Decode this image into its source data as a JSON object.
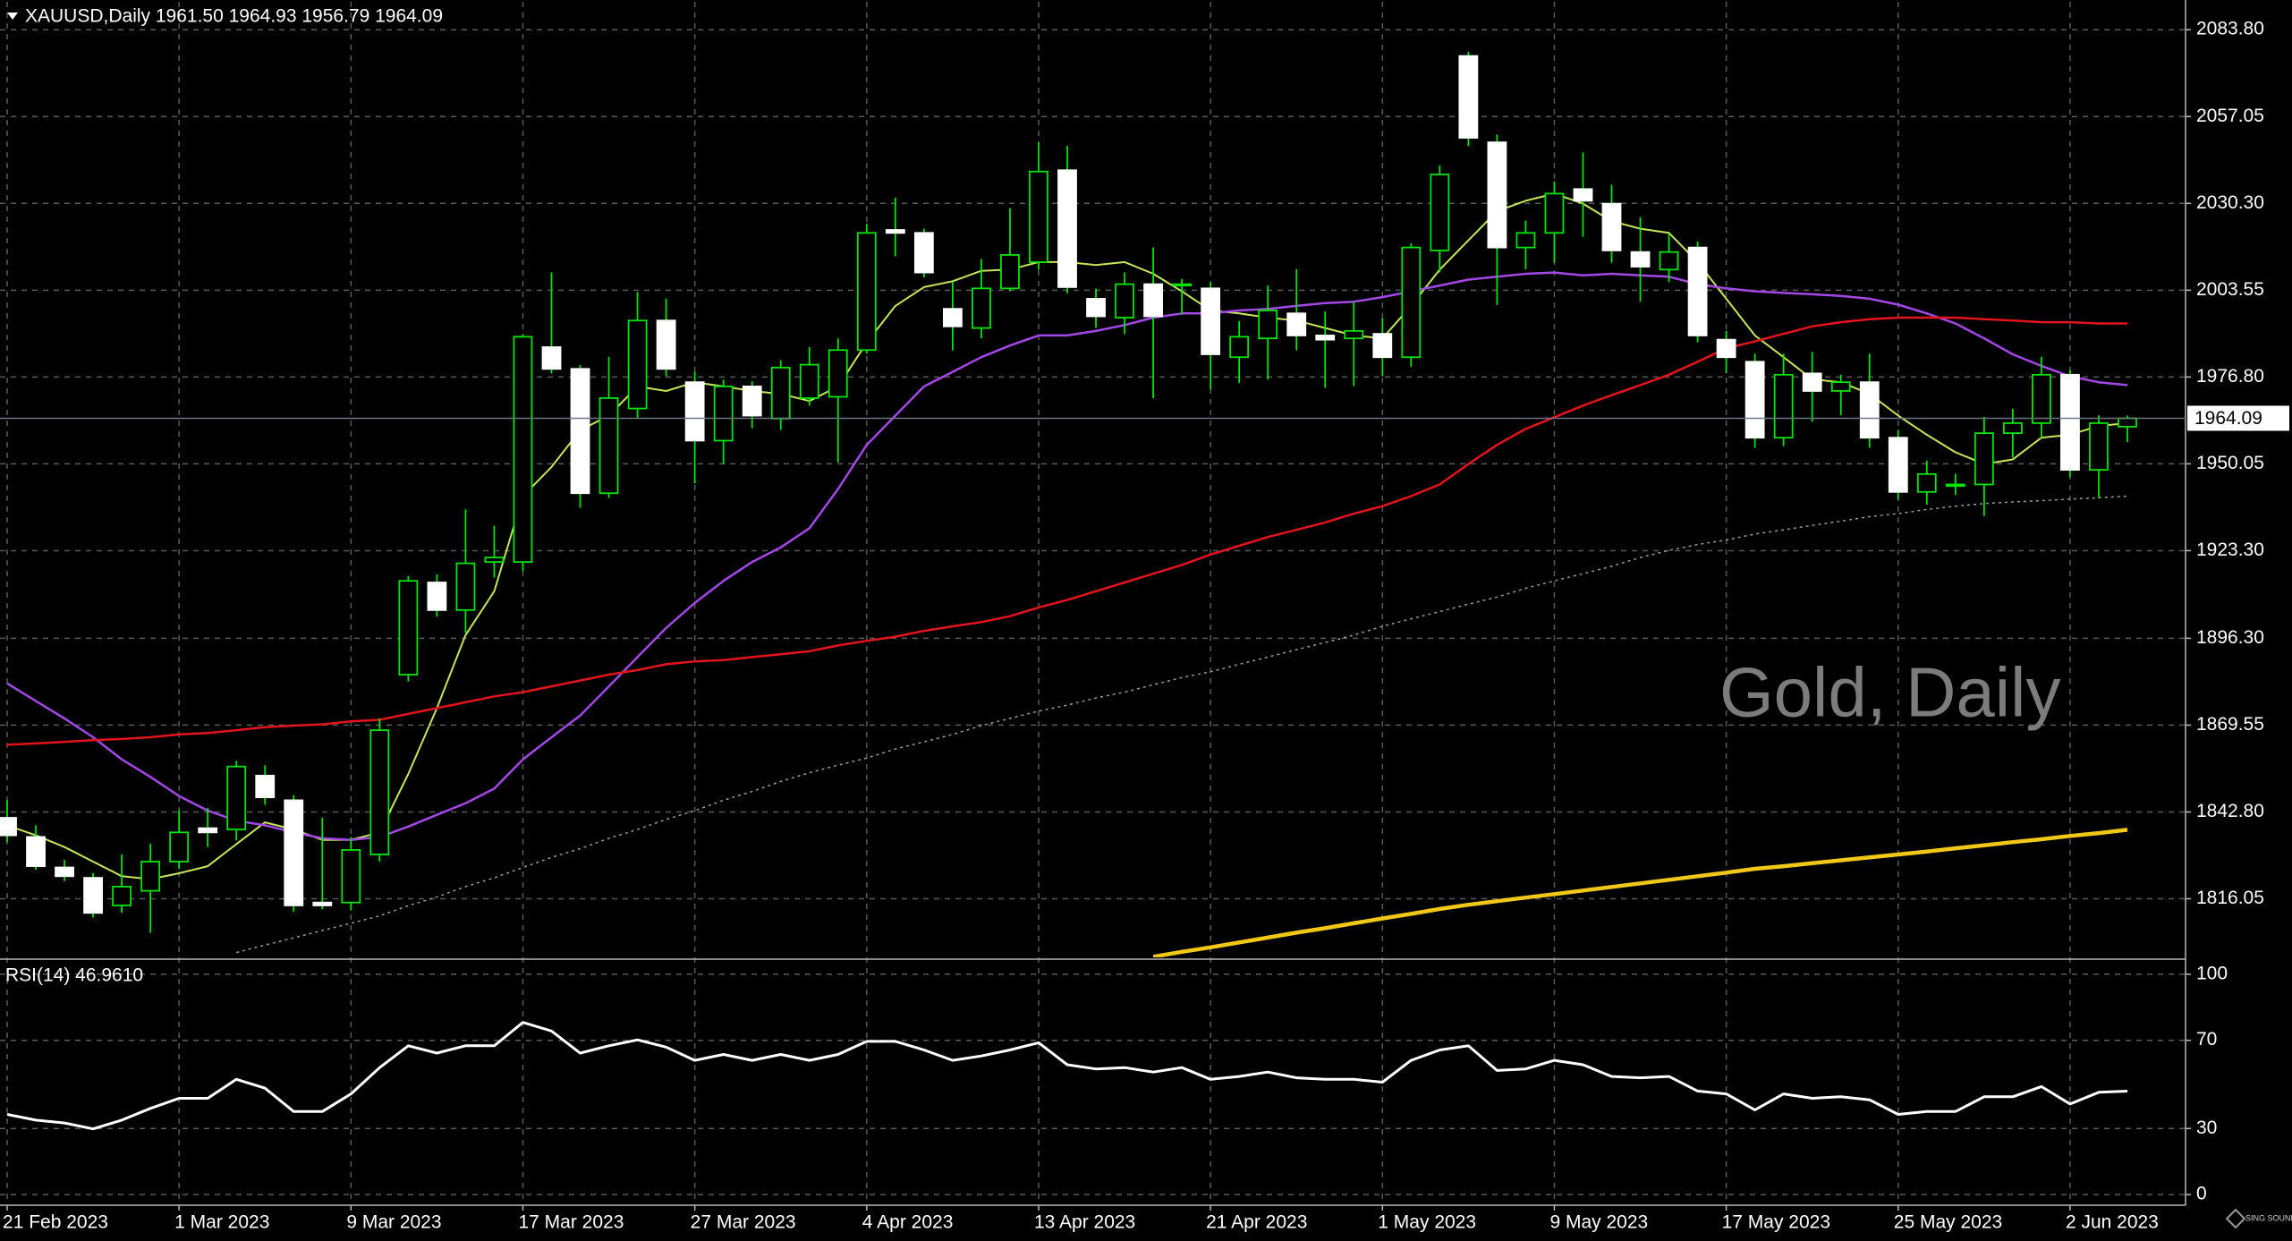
{
  "chart_data": [
    {
      "type": "candlestick",
      "title": "XAUUSD,Daily  1961.50 1964.93 1956.79 1964.09",
      "watermark": "Gold, Daily",
      "logo": "SING SOUND",
      "categories": [
        "21 Feb 2023",
        null,
        null,
        null,
        null,
        null,
        "1 Mar 2023",
        null,
        null,
        null,
        null,
        null,
        "9 Mar 2023",
        null,
        null,
        null,
        null,
        null,
        "17 Mar 2023",
        null,
        null,
        null,
        null,
        null,
        "27 Mar 2023",
        null,
        null,
        null,
        null,
        null,
        "4 Apr 2023",
        null,
        null,
        null,
        null,
        null,
        "13 Apr 2023",
        null,
        null,
        null,
        null,
        null,
        "21 Apr 2023",
        null,
        null,
        null,
        null,
        null,
        "1 May 2023",
        null,
        null,
        null,
        null,
        null,
        "9 May 2023",
        null,
        null,
        null,
        null,
        null,
        "17 May 2023",
        null,
        null,
        null,
        null,
        null,
        "25 May 2023",
        null,
        null,
        null,
        null,
        null,
        "2 Jun 2023",
        null,
        null
      ],
      "open": [
        1841.0,
        1835.1,
        1825.7,
        1822.5,
        1814.0,
        1818.5,
        1827.5,
        1837.8,
        1837.4,
        1854.0,
        1846.4,
        1814.9,
        1814.9,
        1829.7,
        1885.1,
        1913.5,
        1905.0,
        1919.8,
        1919.8,
        1986.0,
        1979.3,
        1941.0,
        1967.1,
        1994.2,
        1975.2,
        1957.2,
        1973.9,
        1964.0,
        1970.3,
        1970.7,
        1985.1,
        2022.1,
        2021.2,
        1997.8,
        1991.9,
        2004.1,
        2012.2,
        2040.5,
        2000.9,
        1995.1,
        2005.4,
        2005.0,
        2004.1,
        1982.9,
        1988.7,
        1996.4,
        1989.6,
        1988.7,
        1990.1,
        1982.9,
        2015.8,
        2075.7,
        2049.1,
        2016.7,
        2021.2,
        2034.7,
        2030.2,
        2015.3,
        2009.9,
        2016.7,
        1988.3,
        1981.5,
        1958.1,
        1977.9,
        1972.5,
        1975.2,
        1958.1,
        1941.4,
        1943.2,
        1943.7,
        1959.5,
        1962.6,
        1977.5,
        1948.2,
        1961.5
      ],
      "high": [
        1846.4,
        1838.7,
        1828.0,
        1824.0,
        1829.7,
        1833.0,
        1843.3,
        1844.0,
        1858.5,
        1857.2,
        1848.0,
        1841.0,
        1835.0,
        1871.6,
        1915.5,
        1916.0,
        1936.0,
        1931.0,
        1990.0,
        2009.0,
        1980.5,
        1983.0,
        2003.0,
        2001.0,
        1978.4,
        1976.0,
        1975.5,
        1982.0,
        1986.0,
        1988.7,
        2024.0,
        2032.0,
        2022.5,
        2006.0,
        2013.1,
        2028.8,
        2049.1,
        2048.0,
        2004.0,
        2009.0,
        2016.7,
        2007.0,
        2006.0,
        1994.0,
        2005.0,
        2010.0,
        1997.0,
        2000.0,
        1995.0,
        2018.0,
        2042.0,
        2077.0,
        2051.5,
        2025.0,
        2037.0,
        2046.0,
        2036.0,
        2026.0,
        2021.0,
        2018.5,
        1991.0,
        1984.0,
        1984.0,
        1984.5,
        1977.5,
        1984.0,
        1960.5,
        1951.0,
        1947.0,
        1964.5,
        1967.0,
        1983.0,
        1979.0,
        1965.0,
        1964.93
      ],
      "low": [
        1833.5,
        1825.0,
        1821.5,
        1810.3,
        1811.7,
        1805.6,
        1825.3,
        1832.0,
        1834.0,
        1845.0,
        1812.0,
        1812.8,
        1812.5,
        1827.5,
        1883.0,
        1903.0,
        1898.0,
        1915.0,
        1917.0,
        1977.9,
        1936.5,
        1939.5,
        1964.0,
        1977.0,
        1944.0,
        1950.0,
        1961.0,
        1960.5,
        1968.0,
        1950.5,
        1984.0,
        2014.0,
        2007.5,
        1985.0,
        1988.7,
        2003.2,
        2009.9,
        2002.5,
        1992.0,
        1990.0,
        1970.3,
        1996.0,
        1973.0,
        1975.0,
        1976.0,
        1985.0,
        1973.5,
        1974.0,
        1977.0,
        1980.0,
        2009.0,
        2048.0,
        1999.0,
        2010.0,
        2012.0,
        2020.0,
        2012.0,
        2000.0,
        2006.0,
        1987.5,
        1978.0,
        1955.0,
        1955.5,
        1963.0,
        1965.0,
        1955.0,
        1939.0,
        1937.5,
        1940.5,
        1934.0,
        1952.0,
        1958.0,
        1946.0,
        1939.5,
        1956.79
      ],
      "close": [
        1835.6,
        1826.1,
        1823.0,
        1811.7,
        1819.8,
        1827.5,
        1836.5,
        1836.5,
        1856.8,
        1847.3,
        1814.0,
        1814.0,
        1831.1,
        1868.0,
        1914.0,
        1905.0,
        1919.4,
        1921.2,
        1989.2,
        1979.3,
        1941.0,
        1970.3,
        1994.2,
        1979.3,
        1957.2,
        1973.9,
        1964.9,
        1979.7,
        1980.6,
        1985.1,
        2021.2,
        2021.2,
        2009.0,
        1992.4,
        2004.1,
        2014.4,
        2040.1,
        2004.5,
        1995.5,
        2005.4,
        1995.5,
        2005.4,
        1983.8,
        1989.2,
        1997.3,
        1989.6,
        1988.3,
        1991.0,
        1982.9,
        2016.7,
        2039.2,
        2050.5,
        2016.7,
        2021.2,
        2033.3,
        2031.1,
        2015.8,
        2010.8,
        2015.3,
        1989.6,
        1982.9,
        1958.1,
        1977.5,
        1972.5,
        1975.2,
        1958.1,
        1941.4,
        1946.9,
        1943.7,
        1959.5,
        1962.6,
        1977.5,
        1948.2,
        1962.6,
        1964.09
      ],
      "up_color": "#00e600",
      "up_fill": "#000000",
      "down_color": "#ffffff",
      "wick_color": "#00e600",
      "series": [
        {
          "color": "#c6e65a",
          "width": 2,
          "values": [
            1838.7,
            1835.6,
            1832.0,
            1827.5,
            1823.0,
            1822.1,
            1823.9,
            1826.1,
            1832.9,
            1839.6,
            1837.4,
            1834.2,
            1834.2,
            1836.5,
            1854.5,
            1874.8,
            1897.3,
            1910.8,
            1940.1,
            1949.1,
            1960.4,
            1964.9,
            1973.9,
            1972.5,
            1975.2,
            1973.9,
            1972.5,
            1971.6,
            1969.4,
            1973.9,
            1987.4,
            1998.7,
            2004.5,
            2006.3,
            2009.5,
            2009.9,
            2012.2,
            2012.2,
            2011.3,
            2012.2,
            2008.6,
            2003.2,
            1997.3,
            1996.4,
            1995.1,
            1994.2,
            1991.9,
            1989.6,
            1988.7,
            1998.7,
            2009.9,
            2018.9,
            2027.9,
            2031.1,
            2033.3,
            2030.2,
            2024.8,
            2022.5,
            2021.2,
            2012.2,
            2000.9,
            1989.6,
            1982.9,
            1976.1,
            1975.2,
            1971.6,
            1964.9,
            1959.0,
            1953.6,
            1950.0,
            1951.4,
            1958.1,
            1959.0,
            1961.7,
            1962.6
          ]
        },
        {
          "color": "#a347e6",
          "width": 2.5,
          "values": [
            1882.4,
            1877.0,
            1871.6,
            1865.8,
            1859.0,
            1853.6,
            1847.7,
            1843.2,
            1840.1,
            1838.7,
            1836.5,
            1834.7,
            1834.2,
            1835.1,
            1838.3,
            1841.9,
            1845.5,
            1850.0,
            1859.0,
            1865.8,
            1872.5,
            1881.5,
            1890.5,
            1899.5,
            1907.2,
            1914.0,
            1919.8,
            1924.3,
            1930.2,
            1942.3,
            1955.9,
            1964.9,
            1973.9,
            1978.4,
            1982.9,
            1986.5,
            1989.6,
            1989.6,
            1991.0,
            1992.8,
            1995.1,
            1996.4,
            1996.4,
            1997.3,
            1997.8,
            1998.7,
            1999.6,
            2000.0,
            2001.4,
            2003.2,
            2005.0,
            2006.8,
            2007.7,
            2008.6,
            2009.0,
            2008.1,
            2008.6,
            2008.1,
            2007.7,
            2005.4,
            2004.1,
            2003.2,
            2002.7,
            2002.3,
            2001.8,
            2000.9,
            1999.1,
            1996.4,
            1993.3,
            1988.7,
            1983.8,
            1980.2,
            1977.0,
            1975.2,
            1974.3
          ]
        },
        {
          "color": "#e3141b",
          "width": 2.5,
          "values": [
            1863.5,
            1863.9,
            1864.4,
            1864.9,
            1865.3,
            1865.8,
            1866.7,
            1867.1,
            1868.0,
            1868.9,
            1869.4,
            1869.8,
            1870.7,
            1871.2,
            1873.0,
            1874.8,
            1876.6,
            1878.4,
            1879.7,
            1881.5,
            1883.3,
            1885.1,
            1886.5,
            1888.3,
            1889.2,
            1889.6,
            1890.5,
            1891.4,
            1892.3,
            1894.1,
            1895.5,
            1896.8,
            1898.6,
            1900.0,
            1901.3,
            1903.1,
            1905.8,
            1908.1,
            1910.8,
            1913.5,
            1916.2,
            1918.9,
            1922.1,
            1924.8,
            1927.5,
            1929.7,
            1932.0,
            1934.7,
            1937.0,
            1940.1,
            1943.7,
            1950.0,
            1955.9,
            1960.8,
            1964.4,
            1968.0,
            1971.2,
            1974.3,
            1977.5,
            1981.5,
            1985.6,
            1987.8,
            1990.1,
            1992.4,
            1993.7,
            1994.6,
            1995.1,
            1995.1,
            1995.1,
            1994.6,
            1994.2,
            1993.7,
            1993.7,
            1993.3,
            1993.3
          ]
        },
        {
          "color": "#9a9a9a",
          "width": 1.5,
          "dashed": true,
          "values": [
            null,
            null,
            null,
            null,
            null,
            null,
            null,
            null,
            1799.5,
            1801.8,
            1804.0,
            1806.3,
            1808.5,
            1810.8,
            1813.9,
            1816.6,
            1819.8,
            1822.5,
            1825.7,
            1828.8,
            1831.5,
            1834.7,
            1837.4,
            1840.5,
            1843.2,
            1846.4,
            1849.1,
            1852.2,
            1854.9,
            1857.2,
            1859.4,
            1862.2,
            1864.4,
            1866.7,
            1869.4,
            1871.6,
            1873.9,
            1875.7,
            1877.9,
            1879.7,
            1882.0,
            1884.2,
            1886.0,
            1888.3,
            1890.5,
            1892.8,
            1895.0,
            1897.3,
            1900.0,
            1902.3,
            1904.5,
            1906.8,
            1909.0,
            1911.7,
            1914.0,
            1916.2,
            1918.5,
            1921.2,
            1923.4,
            1925.2,
            1926.6,
            1928.4,
            1929.7,
            1931.1,
            1932.4,
            1933.8,
            1934.7,
            1936.0,
            1937.0,
            1937.8,
            1938.3,
            1938.7,
            1939.2,
            1939.6,
            1940.1
          ]
        },
        {
          "color": "#f2c818",
          "width": 4.5,
          "values": [
            null,
            null,
            null,
            null,
            null,
            null,
            null,
            null,
            null,
            null,
            null,
            null,
            null,
            null,
            null,
            null,
            null,
            null,
            null,
            null,
            null,
            null,
            null,
            null,
            null,
            null,
            null,
            null,
            null,
            null,
            null,
            null,
            null,
            null,
            null,
            null,
            null,
            null,
            null,
            null,
            1798.2,
            1799.7,
            1801.1,
            1802.6,
            1804.1,
            1805.6,
            1807.0,
            1808.5,
            1810.0,
            1811.4,
            1812.9,
            1814.2,
            1815.3,
            1816.4,
            1817.5,
            1818.6,
            1819.7,
            1820.8,
            1821.9,
            1823.0,
            1824.1,
            1825.3,
            1826.1,
            1827.0,
            1827.9,
            1828.8,
            1829.7,
            1830.6,
            1831.6,
            1832.5,
            1833.5,
            1834.4,
            1835.4,
            1836.3,
            1837.3
          ]
        }
      ],
      "last_price": {
        "value": 1964.09,
        "label": "1964.09"
      },
      "ylim": [
        1798.0,
        2092.4
      ],
      "yticks": [
        {
          "value": 2083.8,
          "label": "2083.80"
        },
        2057.05,
        {
          "value": 2030.3,
          "label": "2030.30"
        },
        2003.55,
        {
          "value": 1976.8,
          "label": "1976.80"
        },
        1950.05,
        {
          "value": 1923.3,
          "label": "1923.30"
        },
        {
          "value": 1896.3,
          "label": "1896.30"
        },
        1869.55,
        {
          "value": 1842.8,
          "label": "1842.80"
        },
        1816.05
      ],
      "grid": true
    },
    {
      "type": "line",
      "title": "RSI(14) 46.9610",
      "series": [
        {
          "color": "#ffffff",
          "width": 3,
          "values": [
            36.4,
            33.8,
            32.5,
            29.8,
            33.8,
            39.1,
            43.7,
            43.7,
            52.3,
            48.3,
            37.7,
            37.7,
            45.7,
            57.6,
            67.5,
            64.2,
            67.5,
            67.5,
            78.1,
            74.2,
            64.2,
            67.5,
            70.2,
            66.9,
            60.9,
            63.6,
            60.9,
            63.6,
            60.9,
            63.6,
            69.5,
            69.5,
            65.6,
            60.9,
            62.9,
            65.6,
            68.9,
            58.9,
            57.0,
            57.6,
            55.6,
            57.6,
            52.3,
            53.6,
            55.6,
            53.0,
            52.3,
            52.3,
            51.0,
            60.9,
            65.6,
            67.5,
            56.3,
            57.0,
            60.9,
            58.9,
            53.6,
            53.0,
            53.6,
            47.0,
            45.7,
            38.4,
            45.7,
            43.7,
            44.4,
            43.0,
            36.4,
            37.7,
            37.7,
            44.4,
            44.4,
            49.0,
            41.1,
            46.4,
            46.961
          ]
        }
      ],
      "ylim": [
        -4,
        106
      ],
      "yticks": [
        100,
        70,
        30,
        0
      ],
      "grid": true
    }
  ]
}
